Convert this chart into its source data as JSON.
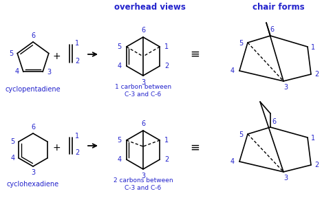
{
  "blue": "#2222cc",
  "black": "#000000",
  "title1": "overhead views",
  "title2": "chair forms",
  "label1": "cyclopentadiene",
  "label2": "cyclohexadiene",
  "caption1": "1 carbon between\nC-3 and C-6",
  "caption2": "2 carbons between\nC-3 and C-6"
}
